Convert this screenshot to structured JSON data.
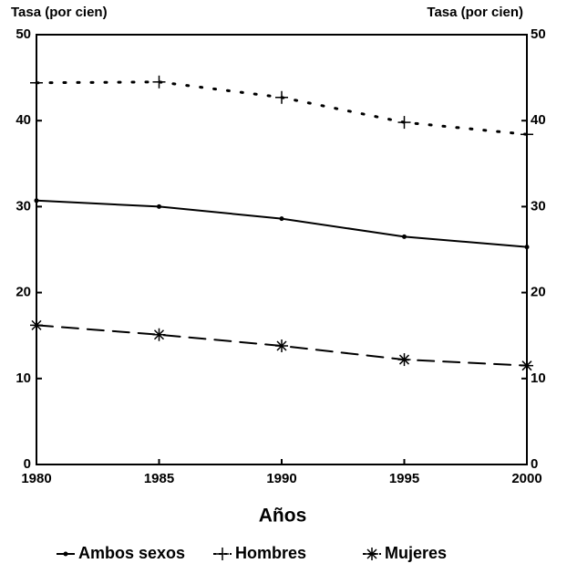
{
  "chart_data": {
    "type": "line",
    "ylabel": "Tasa (por cien)",
    "y2label": "Tasa (por cien)",
    "xlabel": "Años",
    "x": [
      1980,
      1985,
      1990,
      1995,
      2000
    ],
    "xlim": [
      1980,
      2000
    ],
    "xticks": [
      1980,
      1985,
      1990,
      1995,
      2000
    ],
    "ylim": [
      0,
      50
    ],
    "yticks": [
      0,
      10,
      20,
      30,
      40,
      50
    ],
    "y2lim": [
      0,
      50
    ],
    "y2ticks": [
      0,
      10,
      20,
      30,
      40,
      50
    ],
    "grid": false,
    "legend": "bottom",
    "series": [
      {
        "name": "Ambos sexos",
        "color": "#000000",
        "line_style": "solid",
        "marker": "dot",
        "values": [
          30.7,
          30.0,
          28.6,
          26.5,
          25.3
        ]
      },
      {
        "name": "Hombres",
        "color": "#000000",
        "line_style": "dotted",
        "marker": "plus",
        "values": [
          44.4,
          44.5,
          42.7,
          39.8,
          38.4
        ]
      },
      {
        "name": "Mujeres",
        "color": "#000000",
        "line_style": "dashed",
        "marker": "star",
        "values": [
          16.2,
          15.1,
          13.8,
          12.2,
          11.5
        ]
      }
    ]
  }
}
